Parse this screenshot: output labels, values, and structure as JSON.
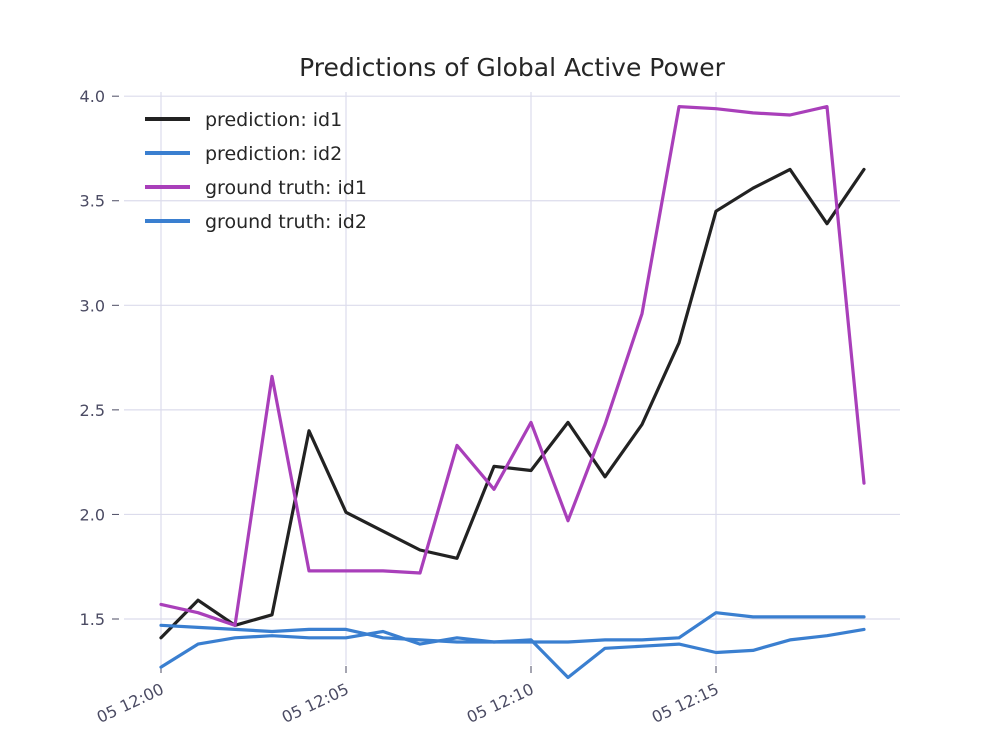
{
  "chart_data": {
    "type": "line",
    "title": "Predictions of Global Active Power",
    "xlabel": "",
    "ylabel": "",
    "x": [
      0,
      1,
      2,
      3,
      4,
      5,
      6,
      7,
      8,
      9,
      10,
      11,
      12,
      13,
      14,
      15,
      16,
      17,
      18,
      19
    ],
    "x_ticks": [
      {
        "x": 0,
        "label": "05 12:00"
      },
      {
        "x": 5,
        "label": "05 12:05"
      },
      {
        "x": 10,
        "label": "05 12:10"
      },
      {
        "x": 15,
        "label": "05 12:15"
      }
    ],
    "y_ticks": [
      {
        "y": 1.5,
        "label": "1.5"
      },
      {
        "y": 2.0,
        "label": "2.0"
      },
      {
        "y": 2.5,
        "label": "2.5"
      },
      {
        "y": 3.0,
        "label": "3.0"
      },
      {
        "y": 3.5,
        "label": "3.5"
      },
      {
        "y": 4.0,
        "label": "4.0"
      }
    ],
    "xlim": [
      0,
      19
    ],
    "ylim": [
      1.28,
      4.02
    ],
    "grid": true,
    "legend_position": "top-left",
    "series": [
      {
        "name": "prediction: id1",
        "color": "#222222",
        "values": [
          1.41,
          1.59,
          1.47,
          1.52,
          2.4,
          2.01,
          1.92,
          1.83,
          1.79,
          2.23,
          2.21,
          2.44,
          2.18,
          2.43,
          2.82,
          3.45,
          3.56,
          3.65,
          3.39,
          3.65
        ]
      },
      {
        "name": "prediction: id2",
        "color": "#3a7fd0",
        "values": [
          1.27,
          1.38,
          1.41,
          1.42,
          1.41,
          1.41,
          1.44,
          1.38,
          1.41,
          1.39,
          1.4,
          1.22,
          1.36,
          1.37,
          1.38,
          1.34,
          1.35,
          1.4,
          1.42,
          1.45
        ]
      },
      {
        "name": "ground truth: id1",
        "color": "#a93fba",
        "values": [
          1.57,
          1.53,
          1.47,
          2.66,
          1.73,
          1.73,
          1.73,
          1.72,
          2.33,
          2.12,
          2.44,
          1.97,
          2.43,
          2.96,
          3.95,
          3.94,
          3.92,
          3.91,
          3.95,
          2.15
        ]
      },
      {
        "name": "ground truth: id2",
        "color": "#3a7fd0",
        "values": [
          1.47,
          1.46,
          1.45,
          1.44,
          1.45,
          1.45,
          1.41,
          1.4,
          1.39,
          1.39,
          1.39,
          1.39,
          1.4,
          1.4,
          1.41,
          1.53,
          1.51,
          1.51,
          1.51,
          1.51
        ]
      }
    ]
  }
}
